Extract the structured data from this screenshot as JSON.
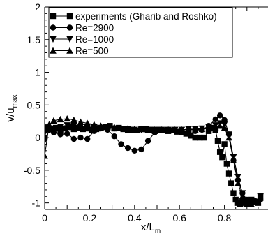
{
  "chart_data": {
    "type": "line",
    "xlabel_main": "x/L",
    "xlabel_sub": "m",
    "ylabel_main": "v/u",
    "ylabel_sub": "max",
    "xlim": [
      0,
      1.0
    ],
    "ylim": [
      -1.1,
      2
    ],
    "xticks": [
      0,
      0.2,
      0.4,
      0.6,
      0.8
    ],
    "xtick_labels": [
      "0",
      "0.2",
      "0.4",
      "0.6",
      "0.8"
    ],
    "yticks": [
      -1,
      -0.5,
      0,
      0.5,
      1,
      1.5,
      2
    ],
    "ytick_labels": [
      "-1",
      "-0.5",
      "0",
      "0.5",
      "1",
      "1.5",
      "2"
    ],
    "grid": false,
    "legend_position": "top-left",
    "series": [
      {
        "name": "experiments (Gharib and Roshko)",
        "marker": "square",
        "x": [
          0.0,
          0.01,
          0.02,
          0.03,
          0.05,
          0.07,
          0.09,
          0.11,
          0.13,
          0.15,
          0.17,
          0.19,
          0.21,
          0.23,
          0.25,
          0.27,
          0.29,
          0.31,
          0.33,
          0.35,
          0.37,
          0.39,
          0.41,
          0.43,
          0.45,
          0.47,
          0.49,
          0.51,
          0.53,
          0.55,
          0.57,
          0.59,
          0.61,
          0.63,
          0.65,
          0.67,
          0.69,
          0.71,
          0.73,
          0.75,
          0.76,
          0.77,
          0.78,
          0.79,
          0.8,
          0.81,
          0.82,
          0.83,
          0.84,
          0.85,
          0.86,
          0.87,
          0.88,
          0.89,
          0.9,
          0.91,
          0.92,
          0.93,
          0.94,
          0.95,
          0.96
        ],
        "y": [
          0.0,
          0.15,
          0.14,
          0.13,
          0.15,
          0.12,
          0.14,
          0.16,
          0.13,
          0.15,
          0.13,
          0.14,
          0.12,
          0.13,
          0.15,
          0.16,
          0.18,
          0.14,
          0.15,
          0.13,
          0.12,
          0.12,
          0.11,
          0.13,
          0.13,
          0.12,
          0.1,
          0.12,
          0.11,
          0.1,
          0.11,
          0.09,
          0.08,
          0.06,
          0.03,
          0.0,
          0.0,
          0.0,
          0.1,
          0.15,
          0.12,
          -0.05,
          -0.22,
          -0.3,
          -0.1,
          -0.4,
          -0.55,
          -0.7,
          -0.85,
          -0.95,
          -1.0,
          -1.02,
          -0.98,
          -1.0,
          -1.02,
          -1.0,
          -0.95,
          -0.97,
          -0.98,
          -1.0,
          -0.9
        ]
      },
      {
        "name": "Re=2900",
        "marker": "circle",
        "x": [
          0.0,
          0.02,
          0.04,
          0.07,
          0.1,
          0.13,
          0.16,
          0.19,
          0.22,
          0.25,
          0.28,
          0.31,
          0.34,
          0.37,
          0.4,
          0.43,
          0.46,
          0.49,
          0.52,
          0.55,
          0.58,
          0.61,
          0.64,
          0.67,
          0.7,
          0.73,
          0.76,
          0.78,
          0.8,
          0.82,
          0.84,
          0.86,
          0.88,
          0.9,
          0.92,
          0.94,
          0.96
        ],
        "y": [
          0.1,
          0.12,
          0.08,
          0.05,
          0.06,
          -0.02,
          0.0,
          -0.02,
          0.1,
          0.14,
          0.12,
          0.02,
          -0.1,
          -0.16,
          -0.2,
          -0.18,
          -0.05,
          0.08,
          0.12,
          0.12,
          0.11,
          0.1,
          0.1,
          0.1,
          0.12,
          0.18,
          0.28,
          0.34,
          0.27,
          0.05,
          -0.35,
          -0.65,
          -0.85,
          -0.95,
          -1.0,
          -0.98,
          -0.95
        ]
      },
      {
        "name": "Re=1000",
        "marker": "triangle-down",
        "x": [
          0.0,
          0.02,
          0.04,
          0.07,
          0.1,
          0.13,
          0.16,
          0.19,
          0.22,
          0.25,
          0.28,
          0.31,
          0.34,
          0.37,
          0.4,
          0.43,
          0.46,
          0.49,
          0.52,
          0.55,
          0.58,
          0.61,
          0.64,
          0.67,
          0.7,
          0.73,
          0.76,
          0.78,
          0.8,
          0.82,
          0.84,
          0.86,
          0.88,
          0.9,
          0.92,
          0.94,
          0.96
        ],
        "y": [
          -0.05,
          0.12,
          0.14,
          0.17,
          0.19,
          0.18,
          0.17,
          0.16,
          0.16,
          0.15,
          0.15,
          0.14,
          0.13,
          0.13,
          0.12,
          0.12,
          0.12,
          0.12,
          0.12,
          0.12,
          0.12,
          0.12,
          0.13,
          0.13,
          0.14,
          0.16,
          0.19,
          0.22,
          0.2,
          0.05,
          -0.3,
          -0.6,
          -0.85,
          -0.97,
          -1.0,
          -0.98,
          -0.9
        ]
      },
      {
        "name": "Re=500",
        "marker": "triangle-up",
        "x": [
          0.0,
          0.02,
          0.04,
          0.07,
          0.1,
          0.13,
          0.16,
          0.19,
          0.22,
          0.25,
          0.28,
          0.31,
          0.34,
          0.37,
          0.4,
          0.43,
          0.46,
          0.49,
          0.52,
          0.55,
          0.58,
          0.61,
          0.64,
          0.67,
          0.7,
          0.73,
          0.76,
          0.78,
          0.8,
          0.82,
          0.84,
          0.86,
          0.88,
          0.9,
          0.92,
          0.94,
          0.96
        ],
        "y": [
          -0.28,
          0.2,
          0.26,
          0.28,
          0.29,
          0.27,
          0.24,
          0.22,
          0.2,
          0.18,
          0.17,
          0.16,
          0.15,
          0.14,
          0.13,
          0.13,
          0.12,
          0.12,
          0.12,
          0.12,
          0.12,
          0.12,
          0.12,
          0.12,
          0.13,
          0.14,
          0.16,
          0.18,
          0.15,
          0.0,
          -0.35,
          -0.7,
          -0.9,
          -1.0,
          -1.02,
          -0.98,
          -0.92
        ]
      }
    ]
  }
}
